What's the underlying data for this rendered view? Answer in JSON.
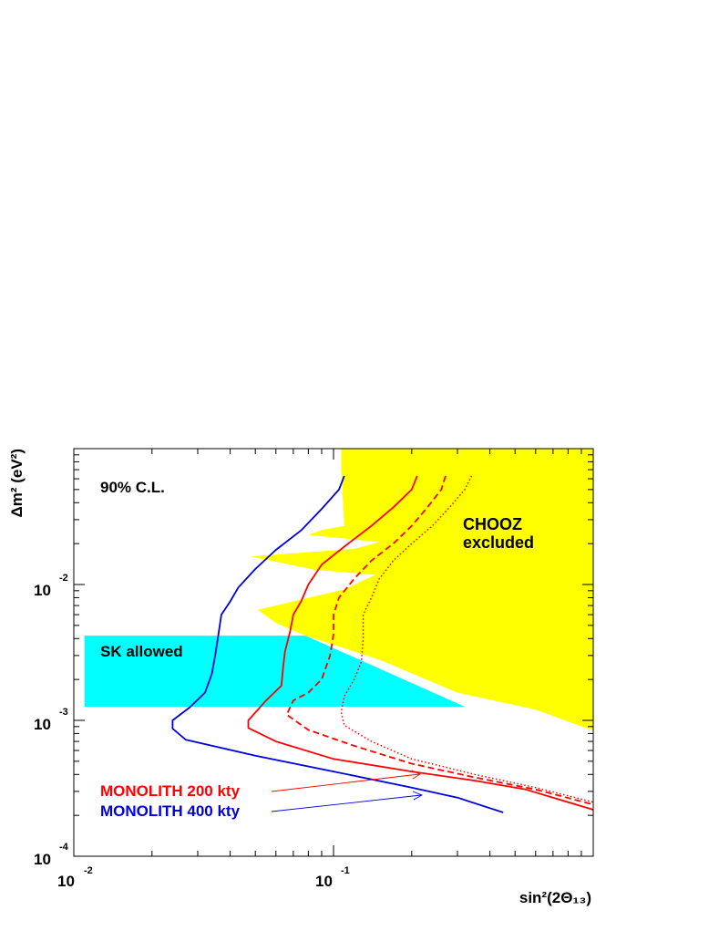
{
  "chart_data": {
    "type": "line",
    "title": "",
    "xlabel": "sin²(2Θ₁₃)",
    "ylabel": "Δm² (eV²)",
    "x_scale": "log",
    "y_scale": "log",
    "xlim": [
      0.01,
      1.0
    ],
    "ylim": [
      0.0001,
      0.1
    ],
    "x_ticks": [
      {
        "value": 0.01,
        "base": "10",
        "exp": "-2"
      },
      {
        "value": 0.1,
        "base": "10",
        "exp": "-1"
      }
    ],
    "y_ticks": [
      {
        "value": 0.0001,
        "base": "10",
        "exp": "-4"
      },
      {
        "value": 0.001,
        "base": "10",
        "exp": "-3"
      },
      {
        "value": 0.01,
        "base": "10",
        "exp": "-2"
      }
    ],
    "annotations": {
      "cl": "90% C.L.",
      "chooz_line1": "CHOOZ",
      "chooz_line2": "excluded",
      "sk": "SK allowed",
      "mono200": "MONOLITH 200 kty",
      "mono400": "MONOLITH 400 kty"
    },
    "regions": [
      {
        "name": "CHOOZ excluded",
        "color": "#ffff00",
        "x": [
          0.107,
          1.0,
          1.0,
          0.6,
          0.3,
          0.15,
          0.078,
          0.06,
          0.051,
          0.11,
          0.145,
          0.085,
          0.048,
          0.12,
          0.15,
          0.08,
          0.09,
          0.11,
          0.107
        ],
        "y": [
          0.1,
          0.1,
          0.00084,
          0.0012,
          0.0016,
          0.0028,
          0.0042,
          0.0052,
          0.0065,
          0.0092,
          0.0118,
          0.0128,
          0.0161,
          0.0183,
          0.0205,
          0.0232,
          0.0252,
          0.027,
          0.07
        ]
      },
      {
        "name": "SK allowed",
        "color": "#00ffff",
        "x": [
          0.011,
          0.078,
          0.32,
          0.011
        ],
        "y": [
          0.0042,
          0.0042,
          0.00126,
          0.00126
        ]
      }
    ],
    "series": [
      {
        "name": "MONOLITH 400 kty",
        "color": "#0000dd",
        "style": "solid",
        "x": [
          0.11,
          0.105,
          0.09,
          0.075,
          0.06,
          0.05,
          0.043,
          0.04,
          0.037,
          0.036,
          0.035,
          0.034,
          0.032,
          0.028,
          0.024,
          0.024,
          0.027,
          0.05,
          0.1,
          0.2,
          0.3,
          0.45
        ],
        "y": [
          0.063,
          0.05,
          0.036,
          0.025,
          0.018,
          0.013,
          0.0095,
          0.0075,
          0.006,
          0.0042,
          0.003,
          0.0022,
          0.0016,
          0.00125,
          0.001,
          0.00087,
          0.00072,
          0.00055,
          0.00042,
          0.00032,
          0.00027,
          0.00021
        ]
      },
      {
        "name": "MONOLITH 200 kty",
        "color": "#ff0000",
        "style": "solid",
        "x": [
          0.21,
          0.2,
          0.17,
          0.14,
          0.11,
          0.09,
          0.08,
          0.075,
          0.07,
          0.068,
          0.065,
          0.064,
          0.063,
          0.055,
          0.047,
          0.047,
          0.06,
          0.1,
          0.2,
          0.35,
          0.55,
          1.0
        ],
        "y": [
          0.063,
          0.05,
          0.037,
          0.027,
          0.019,
          0.014,
          0.01,
          0.0075,
          0.006,
          0.0045,
          0.0032,
          0.0025,
          0.0018,
          0.0014,
          0.001,
          0.00088,
          0.0007,
          0.00052,
          0.00042,
          0.00036,
          0.00031,
          0.00022
        ]
      },
      {
        "name": "",
        "color": "#ff0000",
        "style": "dashed",
        "x": [
          0.27,
          0.26,
          0.23,
          0.2,
          0.17,
          0.14,
          0.12,
          0.105,
          0.1,
          0.1,
          0.097,
          0.09,
          0.08,
          0.07,
          0.066,
          0.08,
          0.12,
          0.2,
          0.35,
          0.6,
          1.0
        ],
        "y": [
          0.063,
          0.05,
          0.037,
          0.027,
          0.02,
          0.015,
          0.011,
          0.008,
          0.006,
          0.0043,
          0.003,
          0.002,
          0.0016,
          0.0014,
          0.0011,
          0.00085,
          0.00065,
          0.00048,
          0.00038,
          0.00031,
          0.00024
        ]
      },
      {
        "name": "",
        "color": "#ff0000",
        "style": "dotted",
        "x": [
          0.34,
          0.32,
          0.28,
          0.24,
          0.2,
          0.17,
          0.15,
          0.14,
          0.13,
          0.13,
          0.128,
          0.12,
          0.11,
          0.107,
          0.11,
          0.14,
          0.2,
          0.35,
          0.6,
          1.0
        ],
        "y": [
          0.063,
          0.05,
          0.037,
          0.027,
          0.02,
          0.015,
          0.011,
          0.008,
          0.006,
          0.004,
          0.0027,
          0.002,
          0.0015,
          0.00115,
          0.00092,
          0.0007,
          0.00052,
          0.0004,
          0.00032,
          0.00025
        ]
      }
    ]
  }
}
